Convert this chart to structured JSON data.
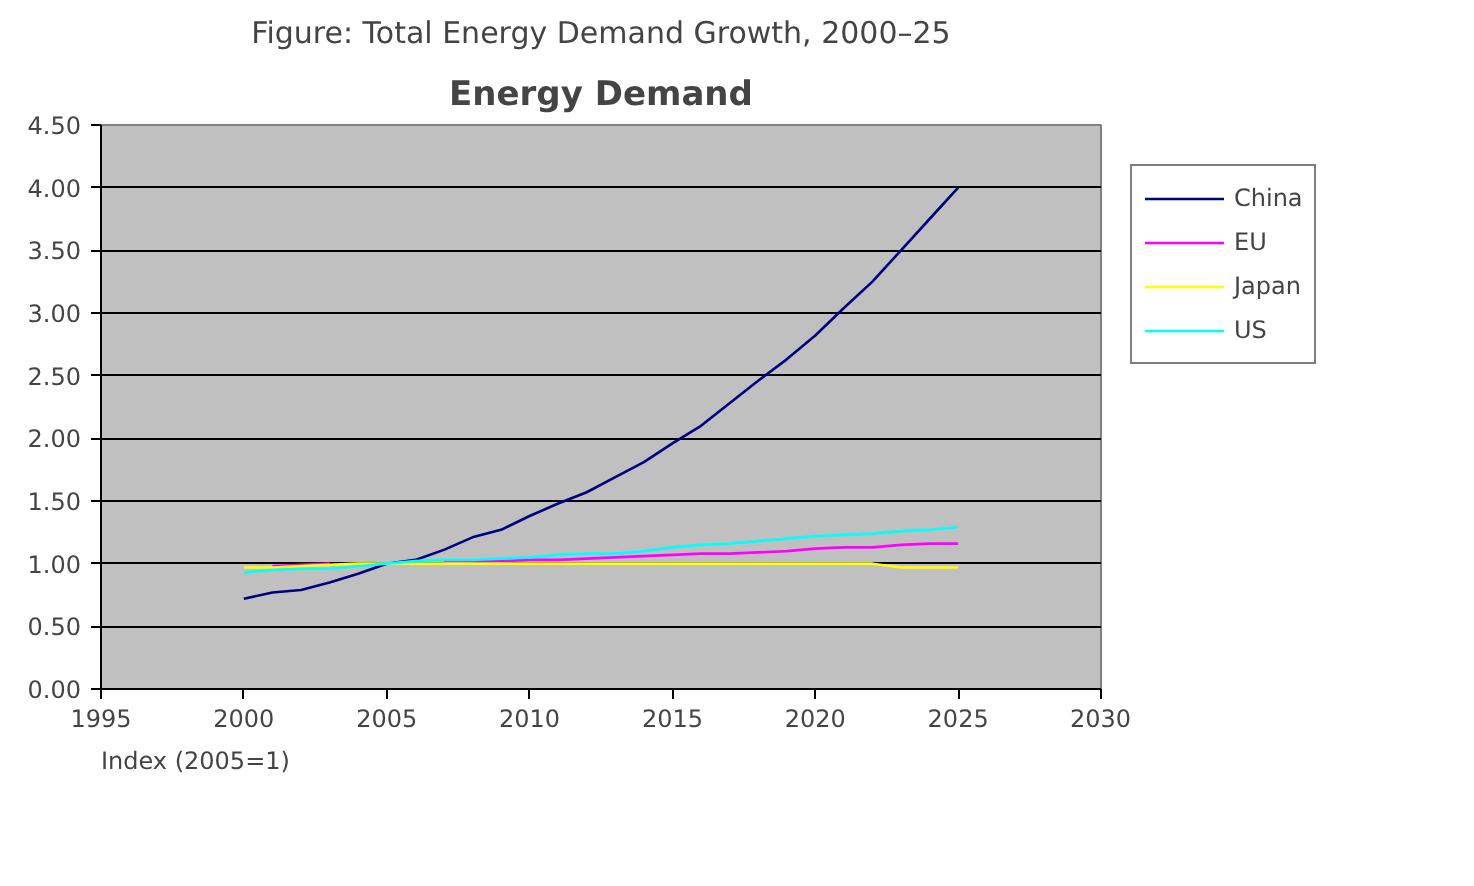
{
  "chart_data": {
    "type": "line",
    "title": "Energy Demand",
    "subtitle": "Figure: Total Energy Demand Growth, 2000–25",
    "x": [
      2000,
      2001,
      2002,
      2003,
      2004,
      2005,
      2006,
      2007,
      2008,
      2009,
      2010,
      2011,
      2012,
      2013,
      2014,
      2015,
      2016,
      2017,
      2018,
      2019,
      2020,
      2021,
      2022,
      2023,
      2024,
      2025
    ],
    "series": [
      {
        "name": "China",
        "color": "#000080",
        "values": [
          0.72,
          0.77,
          0.79,
          0.85,
          0.92,
          1.0,
          1.03,
          1.11,
          1.21,
          1.27,
          1.38,
          1.48,
          1.57,
          1.69,
          1.81,
          1.96,
          2.1,
          2.28,
          2.46,
          2.63,
          2.82,
          3.04,
          3.25,
          3.5,
          3.75,
          4.0
        ]
      },
      {
        "name": "EU",
        "color": "#ff00ff",
        "values": [
          null,
          0.98,
          0.99,
          1.0,
          null,
          null,
          null,
          1.01,
          1.02,
          1.02,
          1.03,
          1.03,
          1.04,
          1.05,
          1.06,
          1.07,
          1.08,
          1.08,
          1.09,
          1.1,
          1.12,
          1.13,
          1.13,
          1.15,
          1.16,
          1.16
        ]
      },
      {
        "name": "Japan",
        "color": "#ffff00",
        "values": [
          0.97,
          0.97,
          0.98,
          0.99,
          1.0,
          1.0,
          1.0,
          1.0,
          1.0,
          1.0,
          1.0,
          1.0,
          1.0,
          1.0,
          1.0,
          1.0,
          1.0,
          1.0,
          1.0,
          1.0,
          1.0,
          1.0,
          1.0,
          0.97,
          0.97,
          0.97
        ]
      },
      {
        "name": "US",
        "color": "#00ffff",
        "values": [
          0.93,
          0.95,
          0.96,
          0.96,
          0.98,
          1.0,
          1.02,
          1.03,
          1.03,
          1.04,
          1.05,
          1.07,
          1.08,
          1.08,
          1.1,
          1.13,
          1.15,
          1.16,
          1.18,
          1.2,
          1.22,
          1.23,
          1.24,
          1.26,
          1.27,
          1.29
        ]
      }
    ],
    "xlim": [
      1995,
      2030
    ],
    "xticks": [
      1995,
      2000,
      2005,
      2010,
      2015,
      2020,
      2025,
      2030
    ],
    "ylim": [
      0,
      4.5
    ],
    "yticks": [
      {
        "value": 0,
        "label": "0.00"
      },
      {
        "value": 0.5,
        "label": "0.50"
      },
      {
        "value": 1,
        "label": "1.00"
      },
      {
        "value": 1.5,
        "label": "1.50"
      },
      {
        "value": 2,
        "label": "2.00"
      },
      {
        "value": 2.5,
        "label": "2.50"
      },
      {
        "value": 3,
        "label": "3.00"
      },
      {
        "value": 3.5,
        "label": "3.50"
      },
      {
        "value": 4,
        "label": "4.00"
      },
      {
        "value": 4.5,
        "label": "4.50"
      }
    ],
    "grid": "y",
    "legend": "right",
    "annotations": [
      "Index (2005=1)"
    ]
  }
}
